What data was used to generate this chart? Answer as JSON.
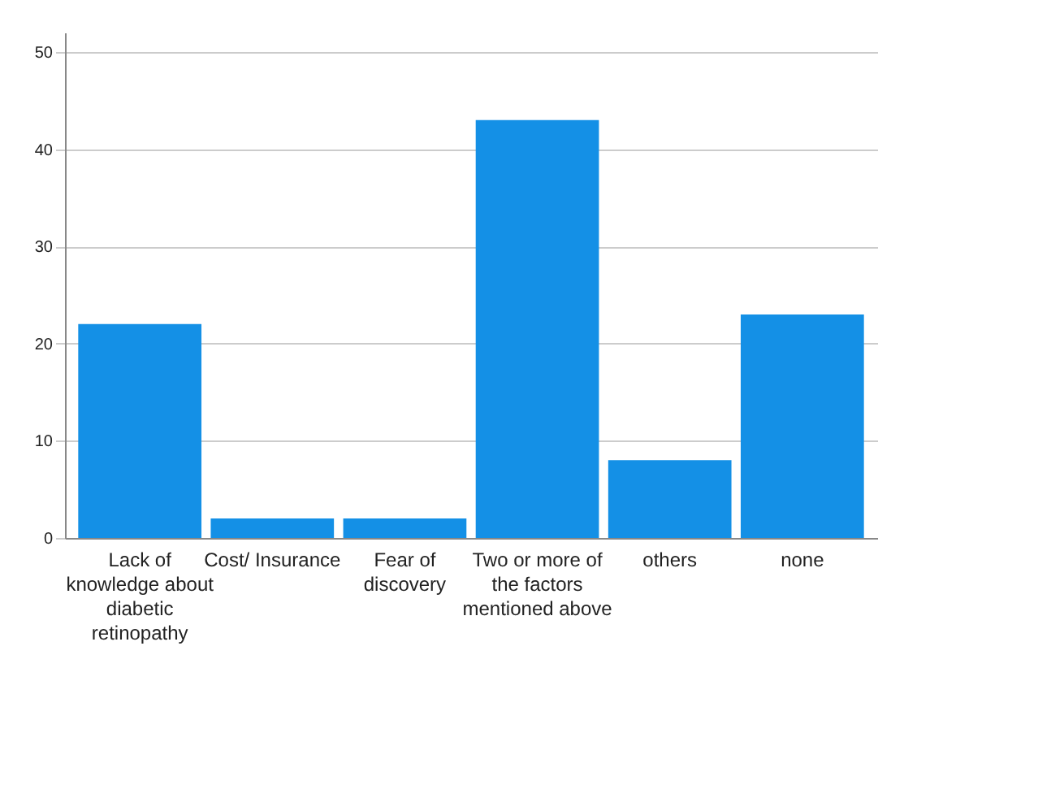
{
  "chart_data": {
    "type": "bar",
    "categories": [
      "Lack of knowledge about diabetic retinopathy",
      "Cost/ Insurance",
      "Fear of discovery",
      "Two or more of the factors mentioned above",
      "others",
      "none"
    ],
    "values": [
      22,
      2,
      2,
      43,
      8,
      23
    ],
    "color": "#1490e6",
    "ylim": [
      0,
      52
    ],
    "yticks": [
      0,
      10,
      20,
      30,
      40,
      50
    ],
    "grid": "y"
  }
}
